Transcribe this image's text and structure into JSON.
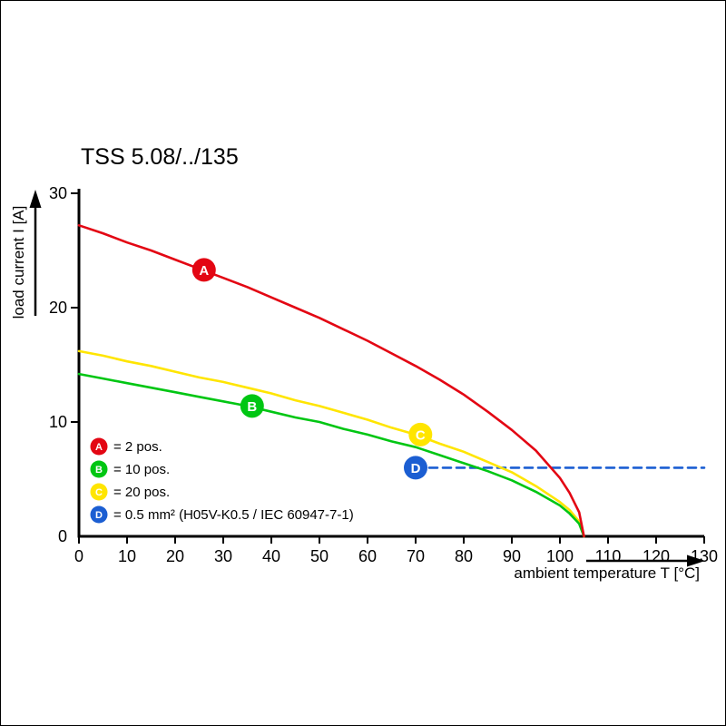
{
  "chart_data": {
    "type": "line",
    "title": "TSS 5.08/../135",
    "xlabel": "ambient temperature T [°C]",
    "ylabel": "load current I [A]",
    "xlim": [
      0,
      130
    ],
    "ylim": [
      0,
      30
    ],
    "xticks": [
      0,
      10,
      20,
      30,
      40,
      50,
      60,
      70,
      80,
      90,
      100,
      110,
      120,
      130
    ],
    "yticks": [
      0,
      10,
      20,
      30
    ],
    "grid": false,
    "legend_position": "inside-bottom-left",
    "series": [
      {
        "name": "A",
        "label": "= 2 pos.",
        "color": "#e30613",
        "style": "solid",
        "points": [
          [
            0,
            27.2
          ],
          [
            5,
            26.5
          ],
          [
            10,
            25.7
          ],
          [
            15,
            25.0
          ],
          [
            20,
            24.2
          ],
          [
            25,
            23.4
          ],
          [
            30,
            22.6
          ],
          [
            35,
            21.8
          ],
          [
            40,
            20.9
          ],
          [
            45,
            20.0
          ],
          [
            50,
            19.1
          ],
          [
            55,
            18.1
          ],
          [
            60,
            17.1
          ],
          [
            65,
            16.0
          ],
          [
            70,
            14.9
          ],
          [
            75,
            13.7
          ],
          [
            80,
            12.4
          ],
          [
            85,
            10.9
          ],
          [
            90,
            9.3
          ],
          [
            95,
            7.5
          ],
          [
            100,
            5.1
          ],
          [
            102,
            3.8
          ],
          [
            104,
            2.1
          ],
          [
            105,
            0
          ]
        ]
      },
      {
        "name": "B",
        "label": "= 10 pos.",
        "color": "#00c613",
        "style": "solid",
        "points": [
          [
            0,
            14.2
          ],
          [
            5,
            13.8
          ],
          [
            10,
            13.4
          ],
          [
            15,
            13.0
          ],
          [
            20,
            12.6
          ],
          [
            25,
            12.2
          ],
          [
            30,
            11.8
          ],
          [
            35,
            11.4
          ],
          [
            40,
            10.9
          ],
          [
            45,
            10.4
          ],
          [
            50,
            10.0
          ],
          [
            55,
            9.4
          ],
          [
            60,
            8.9
          ],
          [
            65,
            8.3
          ],
          [
            70,
            7.8
          ],
          [
            75,
            7.1
          ],
          [
            80,
            6.4
          ],
          [
            85,
            5.7
          ],
          [
            90,
            4.9
          ],
          [
            95,
            3.9
          ],
          [
            100,
            2.7
          ],
          [
            102,
            2.0
          ],
          [
            104,
            1.1
          ],
          [
            105,
            0
          ]
        ]
      },
      {
        "name": "C",
        "label": "= 20 pos.",
        "color": "#ffe500",
        "style": "solid",
        "points": [
          [
            0,
            16.2
          ],
          [
            5,
            15.8
          ],
          [
            10,
            15.3
          ],
          [
            15,
            14.9
          ],
          [
            20,
            14.4
          ],
          [
            25,
            13.9
          ],
          [
            30,
            13.5
          ],
          [
            35,
            13.0
          ],
          [
            40,
            12.5
          ],
          [
            45,
            11.9
          ],
          [
            50,
            11.4
          ],
          [
            55,
            10.8
          ],
          [
            60,
            10.2
          ],
          [
            65,
            9.5
          ],
          [
            70,
            8.9
          ],
          [
            75,
            8.1
          ],
          [
            80,
            7.4
          ],
          [
            85,
            6.5
          ],
          [
            90,
            5.6
          ],
          [
            95,
            4.4
          ],
          [
            100,
            3.0
          ],
          [
            102,
            2.3
          ],
          [
            104,
            1.3
          ],
          [
            105,
            0
          ]
        ]
      },
      {
        "name": "D",
        "label": "= 0.5 mm² (H05V-K0.5 / IEC 60947-7-1)",
        "color": "#1b5ed2",
        "style": "dashed",
        "points": [
          [
            70,
            6
          ],
          [
            130,
            6
          ]
        ]
      }
    ],
    "markers": [
      {
        "letter": "A",
        "x": 26,
        "y": 23.3,
        "color": "#e30613"
      },
      {
        "letter": "B",
        "x": 36,
        "y": 11.4,
        "color": "#00c613"
      },
      {
        "letter": "C",
        "x": 71,
        "y": 8.9,
        "color": "#ffe500"
      },
      {
        "letter": "D",
        "x": 70,
        "y": 6.0,
        "color": "#1b5ed2"
      }
    ]
  }
}
